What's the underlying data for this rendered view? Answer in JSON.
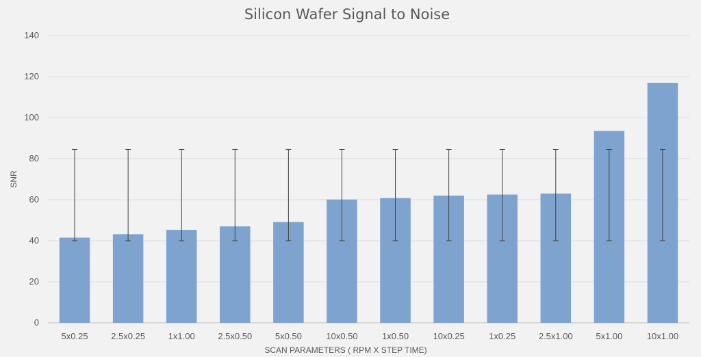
{
  "chart_data": {
    "type": "bar",
    "title": "Silicon Wafer Signal to Noise",
    "xlabel": "SCAN PARAMETERS ( RPM X STEP TIME)",
    "ylabel": "SNR",
    "ylim": [
      0,
      140
    ],
    "yticks": [
      0,
      20,
      40,
      60,
      80,
      100,
      120,
      140
    ],
    "grid": true,
    "legend": "none",
    "colors": {
      "bar": "#7fa3cf",
      "error_bar": "#404040",
      "grid": "#d9d9e6",
      "background": "#f2f2f2"
    },
    "categories": [
      "5x0.25",
      "2.5x0.25",
      "1x1.00",
      "2.5x0.50",
      "5x0.50",
      "10x0.50",
      "1x0.50",
      "10x0.25",
      "1x0.25",
      "2.5x1.00",
      "5x1.00",
      "10x1.00"
    ],
    "values": [
      41.5,
      43.2,
      45.3,
      47.0,
      49.1,
      60.1,
      60.8,
      62.0,
      62.5,
      63.0,
      93.5,
      117.0
    ],
    "error_bars": {
      "low": 40,
      "high": 84.5
    }
  }
}
